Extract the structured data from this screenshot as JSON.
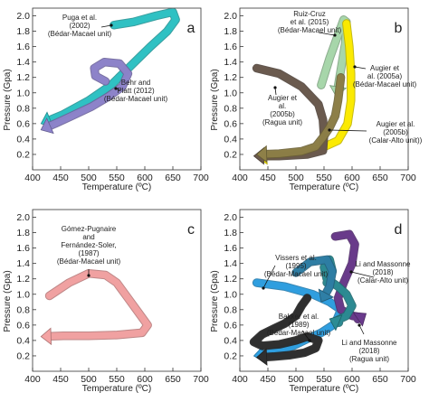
{
  "chart_data": [
    {
      "panel": "a",
      "type": "line",
      "xlabel": "Temperature (ºC)",
      "ylabel": "Pressure (Gpa)",
      "xlim": [
        400,
        700
      ],
      "ylim": [
        0.0,
        2.1
      ],
      "xticks": [
        400,
        450,
        500,
        550,
        600,
        650,
        700
      ],
      "yticks": [
        0.2,
        0.4,
        0.6,
        0.8,
        1.0,
        1.2,
        1.4,
        1.6,
        1.8,
        2.0
      ],
      "series": [
        {
          "color": "#2fc4c6",
          "x": [
            545,
            580,
            620,
            650,
            655,
            640,
            610,
            575,
            540,
            500,
            455,
            415
          ],
          "y": [
            1.88,
            1.92,
            2.0,
            2.05,
            1.95,
            1.8,
            1.6,
            1.35,
            1.1,
            0.9,
            0.72,
            0.6
          ]
        },
        {
          "color": "#8e84cc",
          "x": [
            530,
            512,
            510,
            528,
            555,
            570,
            560,
            535,
            505,
            470,
            440,
            415
          ],
          "y": [
            1.15,
            1.22,
            1.32,
            1.4,
            1.38,
            1.25,
            1.08,
            0.95,
            0.82,
            0.7,
            0.6,
            0.52
          ]
        }
      ],
      "annotations": [
        {
          "lines": [
            "Puga et al.",
            "(2002)",
            "(Bédar-Macael unit)"
          ]
        },
        {
          "lines": [
            "Behr and",
            "Platt (2012)",
            "(Bédar-Macael unit)"
          ]
        }
      ]
    },
    {
      "panel": "b",
      "type": "line",
      "xlabel": "Temperature (ºC)",
      "ylabel": "Pressure (Gpa)",
      "xlim": [
        400,
        700
      ],
      "ylim": [
        0.0,
        2.1
      ],
      "xticks": [
        400,
        450,
        500,
        550,
        600,
        650,
        700
      ],
      "yticks": [
        0.2,
        0.4,
        0.6,
        0.8,
        1.0,
        1.2,
        1.4,
        1.6,
        1.8,
        2.0
      ],
      "series": [
        {
          "color": "#a9d9ad",
          "x": [
            545,
            560,
            575,
            585,
            590,
            588,
            580,
            572
          ],
          "y": [
            1.1,
            1.45,
            1.75,
            1.95,
            1.92,
            1.65,
            1.3,
            0.95
          ]
        },
        {
          "color": "#ffee00",
          "x": [
            590,
            595,
            598,
            598,
            592,
            575,
            545,
            510,
            470,
            430
          ],
          "y": [
            1.9,
            1.6,
            1.25,
            0.9,
            0.6,
            0.38,
            0.28,
            0.22,
            0.19,
            0.17
          ]
        },
        {
          "color": "#6b5a4e",
          "x": [
            430,
            470,
            510,
            540,
            548,
            550,
            548,
            520,
            470,
            425
          ],
          "y": [
            1.32,
            1.25,
            1.08,
            0.85,
            0.65,
            0.45,
            0.25,
            0.2,
            0.18,
            0.18
          ]
        },
        {
          "color": "#8e8048",
          "x": [
            580,
            575,
            570,
            560,
            548,
            535,
            510,
            470,
            430
          ],
          "y": [
            1.2,
            0.9,
            0.7,
            0.55,
            0.42,
            0.3,
            0.24,
            0.21,
            0.2
          ]
        }
      ],
      "annotations": [
        {
          "lines": [
            "Ruiz-Cruz",
            "et al. (2015)",
            "(Bédar-Macael unit)"
          ]
        },
        {
          "lines": [
            "Augier et",
            "al.",
            "(2005b)",
            "(Ragua unit)"
          ]
        },
        {
          "lines": [
            "Augier et",
            "al. (2005a)",
            "(Bédar-Macael unit)"
          ]
        },
        {
          "lines": [
            "Augier et al.",
            "(2005b)",
            "(Calar-Alto unit))"
          ]
        }
      ]
    },
    {
      "panel": "c",
      "type": "line",
      "xlabel": "Temperature (ºC)",
      "ylabel": "Pressure (Gpa)",
      "xlim": [
        400,
        700
      ],
      "ylim": [
        0.0,
        2.1
      ],
      "xticks": [
        400,
        450,
        500,
        550,
        600,
        650,
        700
      ],
      "yticks": [
        0.2,
        0.4,
        0.6,
        0.8,
        1.0,
        1.2,
        1.4,
        1.6,
        1.8,
        2.0
      ],
      "series": [
        {
          "color": "#f4a3a3",
          "x": [
            430,
            465,
            500,
            530,
            550,
            570,
            590,
            605,
            595,
            550,
            500,
            455,
            415
          ],
          "y": [
            0.98,
            1.15,
            1.27,
            1.25,
            1.15,
            0.95,
            0.75,
            0.6,
            0.5,
            0.47,
            0.46,
            0.46,
            0.45
          ]
        }
      ],
      "annotations": [
        {
          "lines": [
            "Gómez-Pugnaire",
            "and",
            "Fernández-Soler,",
            "(1987)",
            "(Bédar-Macael unit)"
          ]
        }
      ]
    },
    {
      "panel": "d",
      "type": "line",
      "xlabel": "Temperature (ºC)",
      "ylabel": "Pressure (Gpa)",
      "xlim": [
        400,
        700
      ],
      "ylim": [
        0.0,
        2.1
      ],
      "xticks": [
        400,
        450,
        500,
        550,
        600,
        650,
        700
      ],
      "yticks": [
        0.2,
        0.4,
        0.6,
        0.8,
        1.0,
        1.2,
        1.4,
        1.6,
        1.8,
        2.0
      ],
      "series": [
        {
          "color": "#2fa1e3",
          "x": [
            430,
            480,
            530,
            560,
            580,
            570,
            545,
            520,
            495,
            470,
            445,
            425
          ],
          "y": [
            1.15,
            1.1,
            1.0,
            0.9,
            0.8,
            0.62,
            0.5,
            0.42,
            0.33,
            0.27,
            0.22,
            0.2
          ]
        },
        {
          "color": "#2f2f2f",
          "x": [
            520,
            510,
            500,
            480,
            460,
            440,
            425,
            440,
            470,
            500,
            520,
            540,
            535,
            515,
            490,
            460,
            430
          ],
          "y": [
            0.95,
            0.85,
            0.72,
            0.62,
            0.55,
            0.48,
            0.38,
            0.33,
            0.35,
            0.4,
            0.45,
            0.4,
            0.3,
            0.24,
            0.21,
            0.19,
            0.18
          ]
        },
        {
          "color": "#6a3a8c",
          "x": [
            570,
            595,
            605,
            600,
            585,
            575,
            580,
            600,
            615,
            625
          ],
          "y": [
            1.75,
            1.78,
            1.65,
            1.4,
            1.15,
            0.95,
            0.8,
            0.72,
            0.7,
            0.75
          ]
        },
        {
          "color": "#2b8c94",
          "x": [
            555,
            565,
            560,
            550,
            555,
            575,
            590,
            600,
            590,
            570,
            560
          ],
          "y": [
            1.15,
            1.3,
            1.45,
            1.35,
            1.2,
            1.1,
            1.0,
            0.85,
            0.72,
            0.65,
            0.68
          ]
        },
        {
          "color": "#2f7fa6",
          "x": [
            500,
            525,
            555,
            565,
            560,
            545
          ],
          "y": [
            1.28,
            1.42,
            1.45,
            1.3,
            1.1,
            0.9
          ]
        }
      ],
      "annotations": [
        {
          "lines": [
            "Vissers et al.",
            "(1995)",
            "(Bédar-Macael unit)"
          ]
        },
        {
          "lines": [
            "Li and Massonne",
            "(2018)",
            "(Calar-Alto unit)"
          ]
        },
        {
          "lines": [
            "Bakker et al.",
            "(1989)",
            "(Bédar-Macael unit)"
          ]
        },
        {
          "lines": [
            "Li and Massonne",
            "(2018)",
            "(Ragua unit)"
          ]
        }
      ]
    }
  ]
}
